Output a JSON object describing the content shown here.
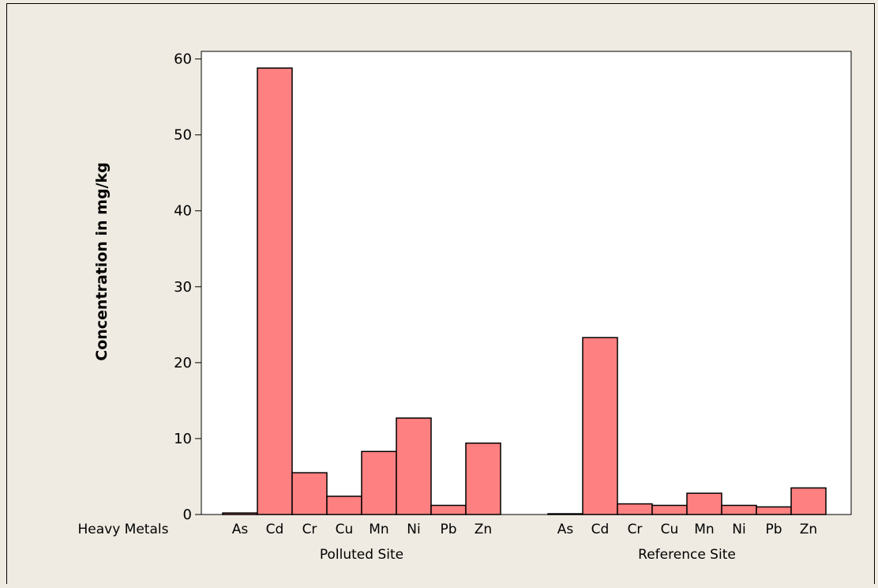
{
  "chart_data": {
    "type": "bar",
    "ylabel": "Concentration in mg/kg",
    "xlabel": "",
    "category_axis_title": "Heavy Metals",
    "ylim": [
      0,
      61
    ],
    "yticks": [
      0,
      10,
      20,
      30,
      40,
      50,
      60
    ],
    "grid": false,
    "bar_color": "#ff8080",
    "plot_background": "#ffffff",
    "figure_background": "#efebe2",
    "groups": [
      {
        "name": "Polluted Site",
        "categories": [
          "As",
          "Cd",
          "Cr",
          "Cu",
          "Mn",
          "Ni",
          "Pb",
          "Zn"
        ],
        "values": [
          0.2,
          58.8,
          5.5,
          2.4,
          8.3,
          12.7,
          1.2,
          9.4
        ]
      },
      {
        "name": "Reference Site",
        "categories": [
          "As",
          "Cd",
          "Cr",
          "Cu",
          "Mn",
          "Ni",
          "Pb",
          "Zn"
        ],
        "values": [
          0.1,
          23.3,
          1.4,
          1.2,
          2.8,
          1.2,
          1.0,
          3.5
        ]
      }
    ]
  }
}
